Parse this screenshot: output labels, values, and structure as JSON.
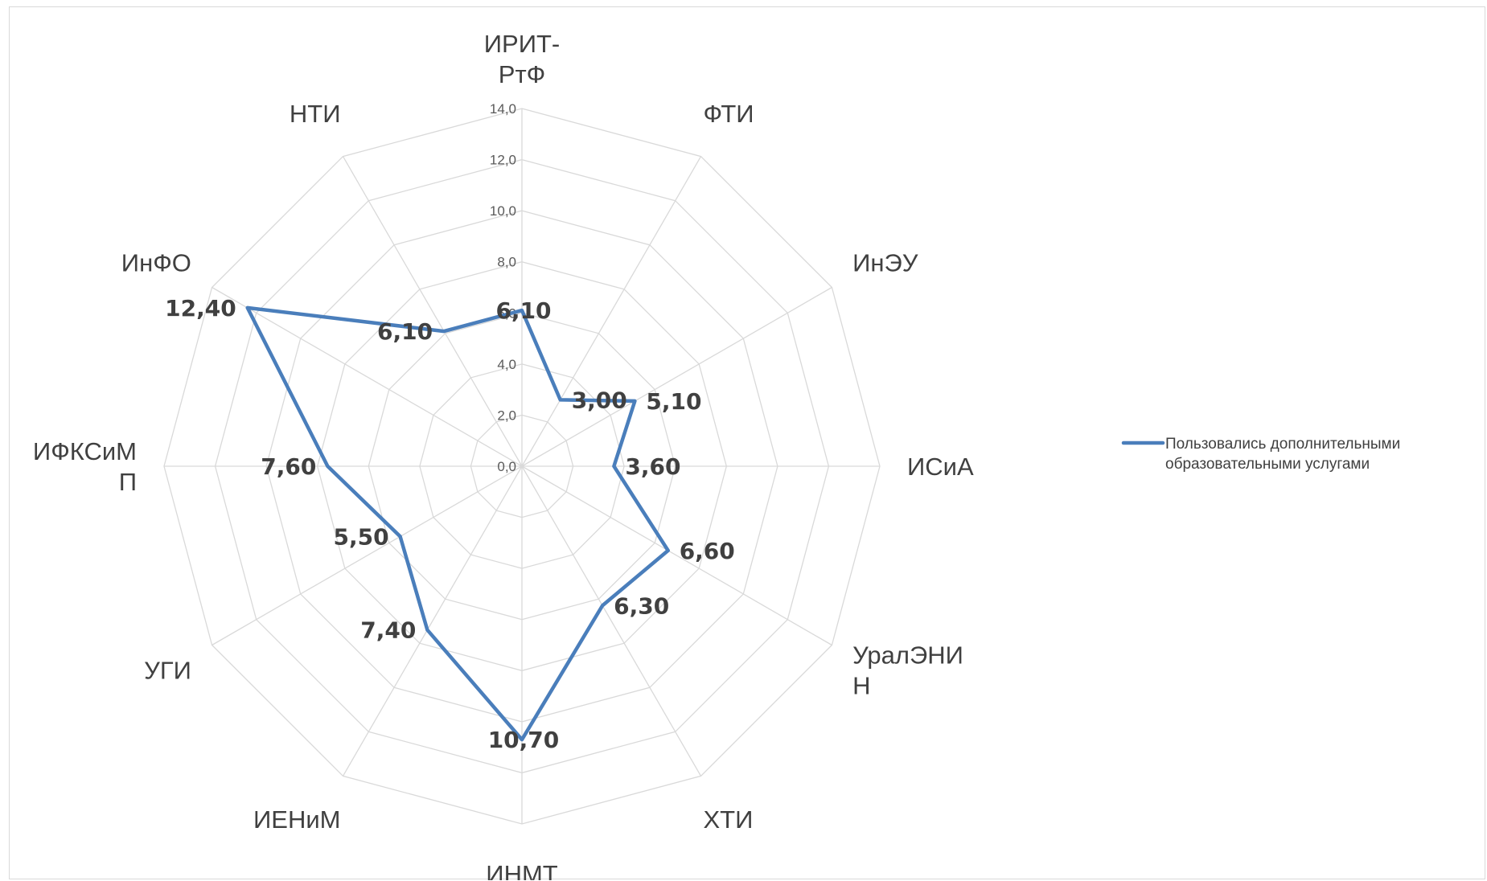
{
  "chart_data": {
    "type": "radar",
    "categories": [
      "ИРИТ-РтФ",
      "ФТИ",
      "ИнЭУ",
      "ИСиА",
      "УралЭНИН",
      "ХТИ",
      "ИНМТ",
      "ИЕНиМ",
      "УГИ",
      "ИФКСиМП",
      "ИнФО",
      "НТИ"
    ],
    "category_lines": [
      [
        "ИРИТ-",
        "РтФ"
      ],
      [
        "ФТИ"
      ],
      [
        "ИнЭУ"
      ],
      [
        "ИСиА"
      ],
      [
        "УралЭНИ",
        "Н"
      ],
      [
        "ХТИ"
      ],
      [
        "ИНМТ"
      ],
      [
        "ИЕНиМ"
      ],
      [
        "УГИ"
      ],
      [
        "ИФКСиМ",
        "П"
      ],
      [
        "ИнФО"
      ],
      [
        "НТИ"
      ]
    ],
    "axis_ticks": [
      "0,0",
      "2,0",
      "4,0",
      "6,0",
      "8,0",
      "10,0",
      "12,0",
      "14,0"
    ],
    "range": [
      0,
      14
    ],
    "grid": true,
    "legend_position": "right",
    "series": [
      {
        "name": "Пользовались дополнительными образовательными услугами",
        "legend_lines": [
          "Пользовались дополнительными",
          "образовательными услугами"
        ],
        "values": [
          6.1,
          3.0,
          5.1,
          3.6,
          6.6,
          6.3,
          10.7,
          7.4,
          5.5,
          7.6,
          12.4,
          6.1
        ],
        "labels": [
          "6,10",
          "3,00",
          "5,10",
          "3,60",
          "6,60",
          "6,30",
          "10,70",
          "7,40",
          "5,50",
          "7,60",
          "12,40",
          "6,10"
        ],
        "color": "#4a7ebb"
      }
    ],
    "colors": {
      "grid": "#d9d9d9",
      "text": "#404040",
      "tick": "#595959"
    }
  }
}
